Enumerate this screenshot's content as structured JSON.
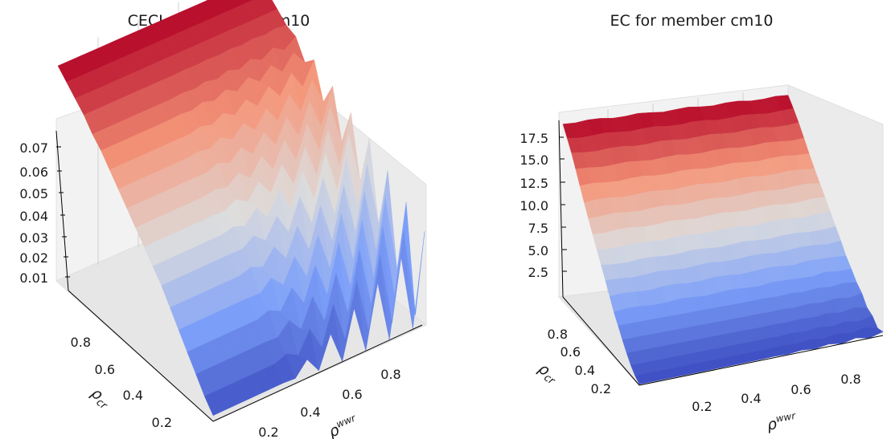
{
  "chart_data": [
    {
      "type": "surface",
      "title": "CECL for member cm10",
      "xlabel": "ρ^wwr",
      "ylabel": "ρ_cr",
      "zlabel": "",
      "x_ticks": [
        "0.2",
        "0.4",
        "0.6",
        "0.8"
      ],
      "y_ticks": [
        "0.2",
        "0.4",
        "0.6",
        "0.8"
      ],
      "z_ticks": [
        "0.01",
        "0.02",
        "0.03",
        "0.04",
        "0.05",
        "0.06",
        "0.07"
      ],
      "xlim": [
        0.05,
        0.95
      ],
      "ylim": [
        0.05,
        0.95
      ],
      "zlim": [
        0.0,
        0.075
      ],
      "colormap": "coolwarm",
      "grid": true,
      "description_of_values": "CECL rises from about 0.002 at rho_cr=0.05 to about 0.075 at rho_cr=0.95, roughly independent of rho^wwr; strong oscillations (spikes up to ~0.05) appear at high rho^wwr and low rho_cr.",
      "x": [
        0.05,
        0.1,
        0.15,
        0.2,
        0.25,
        0.3,
        0.35,
        0.4,
        0.45,
        0.5,
        0.55,
        0.6,
        0.65,
        0.7,
        0.75,
        0.8,
        0.85,
        0.9,
        0.95
      ],
      "y": [
        0.05,
        0.1,
        0.15,
        0.2,
        0.25,
        0.3,
        0.35,
        0.4,
        0.45,
        0.5,
        0.55,
        0.6,
        0.65,
        0.7,
        0.75,
        0.8,
        0.85,
        0.9,
        0.95
      ],
      "z_profile_vs_y": [
        0.002,
        0.006,
        0.011,
        0.016,
        0.021,
        0.026,
        0.031,
        0.035,
        0.039,
        0.043,
        0.047,
        0.051,
        0.055,
        0.059,
        0.062,
        0.066,
        0.069,
        0.072,
        0.075
      ]
    },
    {
      "type": "surface",
      "title": "EC for member cm10",
      "xlabel": "ρ^wwr",
      "ylabel": "ρ_cr",
      "zlabel": "",
      "x_ticks": [
        "0.2",
        "0.4",
        "0.6",
        "0.8"
      ],
      "y_ticks": [
        "0.2",
        "0.4",
        "0.6",
        "0.8"
      ],
      "z_ticks": [
        "2.5",
        "5.0",
        "7.5",
        "10.0",
        "12.5",
        "15.0",
        "17.5"
      ],
      "xlim": [
        0.05,
        0.95
      ],
      "ylim": [
        0.05,
        0.95
      ],
      "zlim": [
        0.0,
        19.0
      ],
      "colormap": "coolwarm",
      "grid": true,
      "description_of_values": "EC rises from about 0 at rho_cr=0.05 to about 18.7 at rho_cr=0.95, nearly independent of rho^wwr; small bumps near high rho^wwr and low rho_cr.",
      "x": [
        0.05,
        0.1,
        0.15,
        0.2,
        0.25,
        0.3,
        0.35,
        0.4,
        0.45,
        0.5,
        0.55,
        0.6,
        0.65,
        0.7,
        0.75,
        0.8,
        0.85,
        0.9,
        0.95
      ],
      "y": [
        0.05,
        0.1,
        0.15,
        0.2,
        0.25,
        0.3,
        0.35,
        0.4,
        0.45,
        0.5,
        0.55,
        0.6,
        0.65,
        0.7,
        0.75,
        0.8,
        0.85,
        0.9,
        0.95
      ],
      "z_profile_vs_y": [
        0.1,
        0.5,
        1.1,
        1.9,
        2.8,
        3.8,
        4.8,
        5.9,
        7.0,
        8.1,
        9.3,
        10.5,
        11.7,
        12.9,
        14.1,
        15.3,
        16.5,
        17.6,
        18.7
      ]
    }
  ]
}
